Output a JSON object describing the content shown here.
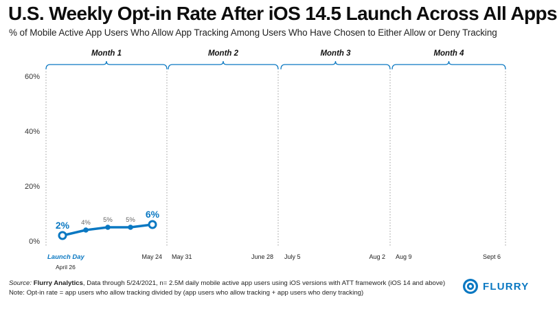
{
  "chart_data": {
    "type": "line",
    "title": "U.S. Weekly Opt-in Rate After iOS 14.5 Launch Across All Apps",
    "subtitle": "% of Mobile Active App Users Who Allow App Tracking Among Users Who Have Chosen to Either Allow or Deny Tracking",
    "ylim": [
      0,
      60
    ],
    "yticks": [
      "0%",
      "20%",
      "40%",
      "60%"
    ],
    "grid": false,
    "months": [
      "Month 1",
      "Month 2",
      "Month 3",
      "Month 4"
    ],
    "x_labels": [
      [
        "Launch Day",
        "May 24"
      ],
      [
        "May 31",
        "June 28"
      ],
      [
        "July 5",
        "Aug 2"
      ],
      [
        "Aug 9",
        "Sept 6"
      ]
    ],
    "launch_date": "April 26",
    "series": [
      {
        "values": [
          2,
          4,
          5,
          5,
          6
        ],
        "labels": [
          "2%",
          "4%",
          "5%",
          "5%",
          "6%"
        ],
        "color": "#0a78c2"
      }
    ]
  },
  "footer": {
    "source_label": "Source:",
    "source_name": "Flurry Analytics",
    "source_text": ", Data through 5/24/2021, n= 2.5M daily mobile active app users using iOS versions with ATT framework (iOS 14 and above)",
    "note": "Note: Opt-in rate = app users who allow tracking divided by (app users who allow tracking + app users who deny tracking)"
  },
  "logo": {
    "text": "FLURRY",
    "icon": "flurry-logo-icon",
    "color": "#0a78c2"
  }
}
